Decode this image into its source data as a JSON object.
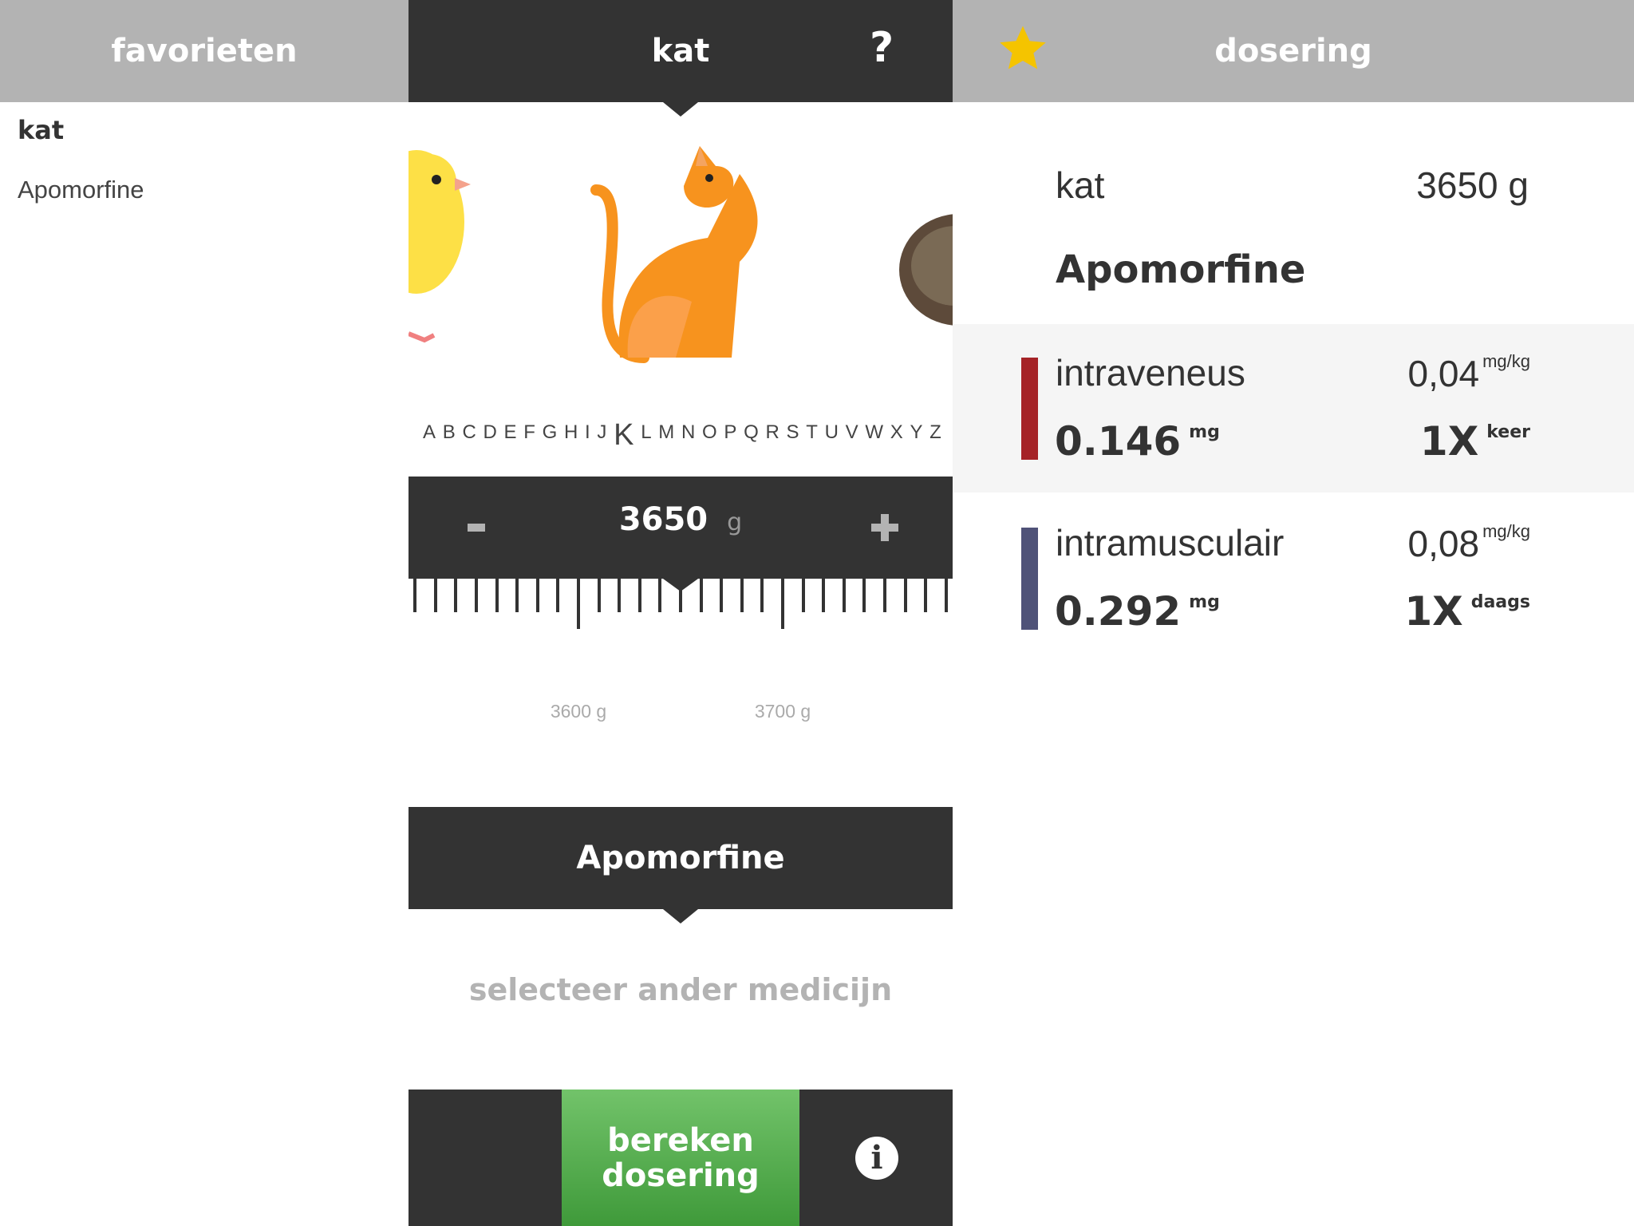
{
  "header": {
    "left_title": "favorieten",
    "center_title": "kat",
    "help_label": "?",
    "right_title": "dosering",
    "star_color": "#f5c400"
  },
  "favorites": {
    "species": "kat",
    "items": [
      "Apomorfine"
    ]
  },
  "alphabet": {
    "letters": [
      "A",
      "B",
      "C",
      "D",
      "E",
      "F",
      "G",
      "H",
      "I",
      "J",
      "K",
      "L",
      "M",
      "N",
      "O",
      "P",
      "Q",
      "R",
      "S",
      "T",
      "U",
      "V",
      "W",
      "X",
      "Y",
      "Z"
    ],
    "selected": "K"
  },
  "animals": {
    "selected": "kat",
    "visible": [
      "canary",
      "kat",
      "bird"
    ]
  },
  "weight": {
    "value": "3650",
    "unit": "g",
    "minus_label": "-",
    "plus_label": "+",
    "ruler_labels": [
      "3600 g",
      "3700 g"
    ],
    "ruler_values": [
      3600,
      3700
    ],
    "current": 3650
  },
  "medicine": {
    "name": "Apomorfine",
    "select_other": "selecteer ander medicijn"
  },
  "bottom": {
    "calc_line1": "bereken",
    "calc_line2": "dosering",
    "info_label": "i"
  },
  "result": {
    "species": "kat",
    "weight": "3650 g",
    "medicine": "Apomorfine",
    "routes": [
      {
        "name": "intraveneus",
        "mgkg": "0,04",
        "mgkg_unit": "mg/kg",
        "dose": "0.146",
        "dose_unit": "mg",
        "freq": "1X",
        "freq_unit": "keer",
        "color": "#a52327"
      },
      {
        "name": "intramusculair",
        "mgkg": "0,08",
        "mgkg_unit": "mg/kg",
        "dose": "0.292",
        "dose_unit": "mg",
        "freq": "1X",
        "freq_unit": "daags",
        "color": "#4f5278"
      }
    ]
  }
}
